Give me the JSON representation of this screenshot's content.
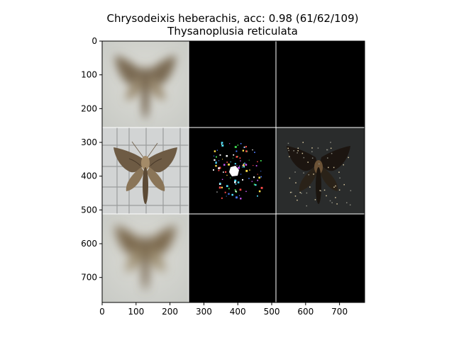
{
  "title": {
    "line1": "Chrysodeixis heberachis, acc: 0.98 (61/62/109)",
    "line2": "Thysanoplusia reticulata"
  },
  "chart_data": {
    "type": "image-grid",
    "xlim": [
      0,
      774
    ],
    "ylim": [
      774,
      0
    ],
    "x_ticks": [
      0,
      100,
      200,
      300,
      400,
      500,
      600,
      700
    ],
    "y_ticks": [
      0,
      100,
      200,
      300,
      400,
      500,
      600,
      700
    ],
    "grid": {
      "rows": 3,
      "cols": 3,
      "cell_size": 258
    },
    "panels": [
      {
        "row": 0,
        "col": 0,
        "content": "blurred-moth"
      },
      {
        "row": 0,
        "col": 1,
        "content": "black"
      },
      {
        "row": 0,
        "col": 2,
        "content": "black"
      },
      {
        "row": 1,
        "col": 0,
        "content": "moth-photo-on-grid"
      },
      {
        "row": 1,
        "col": 1,
        "content": "sparse-saliency"
      },
      {
        "row": 1,
        "col": 2,
        "content": "masked-moth"
      },
      {
        "row": 2,
        "col": 0,
        "content": "blurred-moth"
      },
      {
        "row": 2,
        "col": 1,
        "content": "black"
      },
      {
        "row": 2,
        "col": 2,
        "content": "black"
      }
    ]
  },
  "colors": {
    "axis": "#000000",
    "panel_black": "#000000",
    "separator": "#ffffff"
  }
}
